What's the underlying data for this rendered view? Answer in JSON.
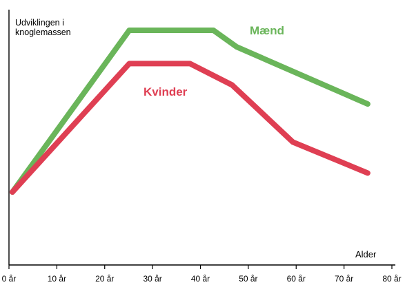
{
  "chart_data": {
    "type": "line",
    "title_lines": [
      "Udviklingen i",
      "knoglemassen"
    ],
    "xlabel": "Alder",
    "ylabel": "",
    "x_ticks": [
      "0 år",
      "10 år",
      "20 år",
      "30 år",
      "40 år",
      "50 år",
      "60 år",
      "70 år",
      "80 år"
    ],
    "x_tick_values": [
      0,
      10,
      20,
      30,
      40,
      50,
      60,
      70,
      80
    ],
    "xlim": [
      0,
      80
    ],
    "ylim": [
      0,
      100
    ],
    "grid": false,
    "series": [
      {
        "name": "Mænd",
        "color": "#6ab55a",
        "x": [
          0,
          25,
          43,
          48,
          76
        ],
        "y": [
          32,
          100,
          100,
          93,
          69
        ]
      },
      {
        "name": "Kvinder",
        "color": "#df3f53",
        "x": [
          0,
          25,
          38,
          47,
          60,
          76
        ],
        "y": [
          32,
          86,
          86,
          77,
          53,
          40
        ]
      }
    ]
  }
}
